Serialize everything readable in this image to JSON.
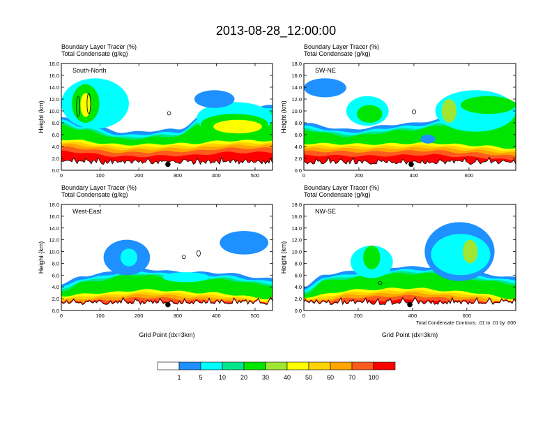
{
  "title": "2013-08-28_12:00:00",
  "field_labels": [
    "Boundary Layer Tracer   (%)",
    "Total Condensate   (g/kg)"
  ],
  "ylabel": "Height (km)",
  "xlabel": "Grid Point (dx=3km)",
  "contour_note": "Total Condensate Contours: .01 to .01 by .000",
  "colorbar": {
    "colors": [
      "#ffffff",
      "#1e90ff",
      "#00ffff",
      "#00e68c",
      "#00e600",
      "#a0e632",
      "#ffff00",
      "#ffd200",
      "#ffa500",
      "#ff5a1e",
      "#ff0000"
    ],
    "labels": [
      "1",
      "5",
      "10",
      "20",
      "30",
      "40",
      "50",
      "60",
      "70",
      "100"
    ]
  },
  "chart_data": [
    {
      "type": "heatmap",
      "name": "South-North",
      "xlim": [
        0,
        545
      ],
      "ylim": [
        0,
        18
      ],
      "xticks": [
        "0",
        "100",
        "200",
        "300",
        "400",
        "500"
      ],
      "xtick_values": [
        0,
        100,
        200,
        300,
        400,
        500
      ],
      "yticks": [
        "0.0",
        "2.0",
        "4.0",
        "6.0",
        "8.0",
        "10.0",
        "12.0",
        "14.0",
        "16.0",
        "18.0"
      ],
      "marker_x": 275,
      "marker_y": 1.0
    },
    {
      "type": "heatmap",
      "name": "SW-NE",
      "xlim": [
        0,
        770
      ],
      "ylim": [
        0,
        18
      ],
      "xticks": [
        "0",
        "200",
        "400",
        "600"
      ],
      "xtick_values": [
        0,
        200,
        400,
        600
      ],
      "yticks": [
        "0.0",
        "2.0",
        "4.0",
        "6.0",
        "8.0",
        "10.0",
        "12.0",
        "14.0",
        "16.0",
        "18.0"
      ],
      "marker_x": 390,
      "marker_y": 1.0
    },
    {
      "type": "heatmap",
      "name": "West-East",
      "xlim": [
        0,
        545
      ],
      "ylim": [
        0,
        18
      ],
      "xticks": [
        "0",
        "100",
        "200",
        "300",
        "400",
        "500"
      ],
      "xtick_values": [
        0,
        100,
        200,
        300,
        400,
        500
      ],
      "yticks": [
        "0.0",
        "2.0",
        "4.0",
        "6.0",
        "8.0",
        "10.0",
        "12.0",
        "14.0",
        "16.0",
        "18.0"
      ],
      "marker_x": 275,
      "marker_y": 1.0
    },
    {
      "type": "heatmap",
      "name": "NW-SE",
      "xlim": [
        0,
        780
      ],
      "ylim": [
        0,
        18
      ],
      "xticks": [
        "0",
        "200",
        "400",
        "600"
      ],
      "xtick_values": [
        0,
        200,
        400,
        600
      ],
      "yticks": [
        "0.0",
        "2.0",
        "4.0",
        "6.0",
        "8.0",
        "10.0",
        "12.0",
        "14.0",
        "16.0",
        "18.0"
      ],
      "marker_x": 390,
      "marker_y": 1.0
    }
  ]
}
